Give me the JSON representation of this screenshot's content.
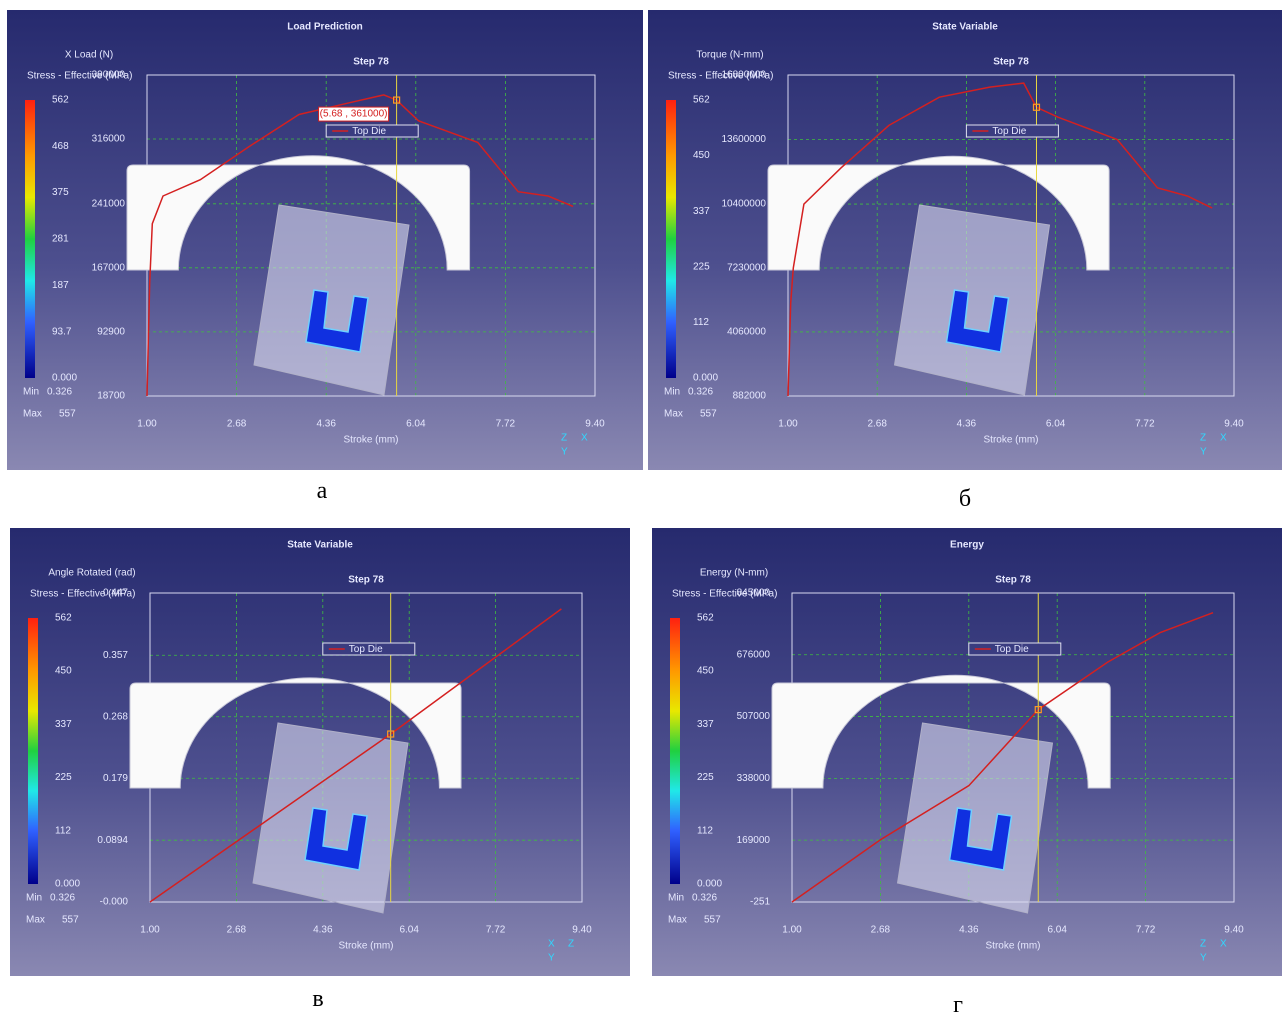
{
  "chart_data": [
    {
      "type": "line",
      "title": "Load Prediction",
      "step": "Step 78",
      "y_label": "X Load (N)",
      "x_label": "Stroke (mm)",
      "caption": "а",
      "colorbar": {
        "title": "Stress - Effective (MPa)",
        "ticks": [
          562,
          468,
          375,
          281,
          187,
          93.7,
          {
            "value": 0,
            "label": "0.000"
          }
        ],
        "min_label": "Min",
        "min": 0.326,
        "max_label": "Max",
        "max": 557
      },
      "x": [
        1.0,
        1.05,
        1.1,
        1.3,
        2.0,
        2.9,
        3.85,
        4.8,
        5.44,
        5.68,
        6.09,
        7.2,
        7.96,
        8.52,
        8.99
      ],
      "series": [
        {
          "name": "Top Die",
          "color": "#d42020",
          "values": [
            18700,
            150000,
            218000,
            250000,
            268900,
            306600,
            344300,
            358000,
            367000,
            361000,
            337000,
            312000,
            255000,
            250000,
            238000
          ]
        }
      ],
      "xlim": [
        1.0,
        9.4
      ],
      "xticks": [
        {
          "value": 1.0,
          "label": "1.00"
        },
        2.68,
        4.36,
        6.04,
        7.72,
        {
          "value": 9.4,
          "label": "9.40"
        }
      ],
      "ylim": [
        18700,
        390000
      ],
      "yticks": [
        18700,
        92900,
        167000,
        241000,
        316000,
        390000
      ],
      "grid": true,
      "cursor": {
        "x": 5.68,
        "y": 361000
      },
      "annotation": "(5.68 , 361000)",
      "triad": [
        "Z",
        "X",
        "Y"
      ]
    },
    {
      "type": "line",
      "title": "State Variable",
      "step": "Step 78",
      "y_label": "Torque (N-mm)",
      "x_label": "Stroke (mm)",
      "caption": "б",
      "colorbar": {
        "title": "Stress - Effective (MPa)",
        "ticks": [
          562,
          450,
          337,
          225,
          112,
          {
            "value": 0,
            "label": "0.000"
          }
        ],
        "min_label": "Min",
        "min": 0.326,
        "max_label": "Max",
        "max": 557
      },
      "x": [
        1.0,
        1.05,
        1.1,
        1.3,
        2.0,
        2.9,
        3.85,
        4.8,
        5.44,
        5.68,
        6.09,
        7.2,
        7.96,
        8.52,
        8.99
      ],
      "series": [
        {
          "name": "Top Die",
          "color": "#d42020",
          "values": [
            882000,
            5500000,
            7230000,
            10400000,
            12200000,
            14300000,
            15700000,
            16200000,
            16400000,
            15200000,
            14700000,
            13600000,
            11200000,
            10800000,
            10200000
          ]
        }
      ],
      "xlim": [
        1.0,
        9.4
      ],
      "xticks": [
        {
          "value": 1.0,
          "label": "1.00"
        },
        2.68,
        4.36,
        6.04,
        7.72,
        {
          "value": 9.4,
          "label": "9.40"
        }
      ],
      "ylim": [
        882000,
        16800000
      ],
      "yticks": [
        882000,
        4060000,
        7230000,
        10400000,
        13600000,
        16800000
      ],
      "grid": true,
      "cursor": {
        "x": 5.68,
        "y": 15200000
      },
      "triad": [
        "Z",
        "X",
        "Y"
      ]
    },
    {
      "type": "line",
      "title": "State Variable",
      "step": "Step 78",
      "y_label": "Angle Rotated (rad)",
      "x_label": "Stroke (mm)",
      "caption": "в",
      "colorbar": {
        "title": "Stress - Effective (MPa)",
        "ticks": [
          562,
          450,
          337,
          225,
          112,
          {
            "value": 0,
            "label": "0.000"
          }
        ],
        "min_label": "Min",
        "min": 0.326,
        "max_label": "Max",
        "max": 557
      },
      "x": [
        1.0,
        5.68,
        9.0
      ],
      "series": [
        {
          "name": "Top Die",
          "color": "#d42020",
          "values": [
            0,
            0.243,
            0.424
          ]
        }
      ],
      "xlim": [
        1.0,
        9.4
      ],
      "xticks": [
        {
          "value": 1.0,
          "label": "1.00"
        },
        2.68,
        4.36,
        6.04,
        7.72,
        {
          "value": 9.4,
          "label": "9.40"
        }
      ],
      "ylim": [
        0,
        0.447
      ],
      "yticks": [
        {
          "value": 0,
          "label": "-0.000"
        },
        0.0894,
        0.179,
        0.268,
        0.357,
        0.447
      ],
      "grid": true,
      "cursor": {
        "x": 5.68,
        "y": 0.243
      },
      "triad": [
        "X",
        "Z",
        "Y"
      ]
    },
    {
      "type": "line",
      "title": "Energy",
      "step": "Step 78",
      "y_label": "Energy (N-mm)",
      "x_label": "Stroke (mm)",
      "caption": "г",
      "colorbar": {
        "title": "Stress - Effective (MPa)",
        "ticks": [
          562,
          450,
          337,
          225,
          112,
          {
            "value": 0,
            "label": "0.000"
          }
        ],
        "min_label": "Min",
        "min": 0.326,
        "max_label": "Max",
        "max": 557
      },
      "x": [
        1.0,
        2.68,
        4.36,
        5.68,
        7.0,
        8.0,
        9.0
      ],
      "series": [
        {
          "name": "Top Die",
          "color": "#d42020",
          "values": [
            -251,
            170000,
            318000,
            526000,
            656000,
            737000,
            791000
          ]
        }
      ],
      "xlim": [
        1.0,
        9.4
      ],
      "xticks": [
        {
          "value": 1.0,
          "label": "1.00"
        },
        2.68,
        4.36,
        6.04,
        7.72,
        {
          "value": 9.4,
          "label": "9.40"
        }
      ],
      "ylim": [
        -251,
        845000
      ],
      "yticks": [
        -251,
        169000,
        338000,
        507000,
        676000,
        845000
      ],
      "grid": true,
      "cursor": {
        "x": 5.68,
        "y": 526000
      },
      "triad": [
        "Z",
        "X",
        "Y"
      ]
    }
  ]
}
